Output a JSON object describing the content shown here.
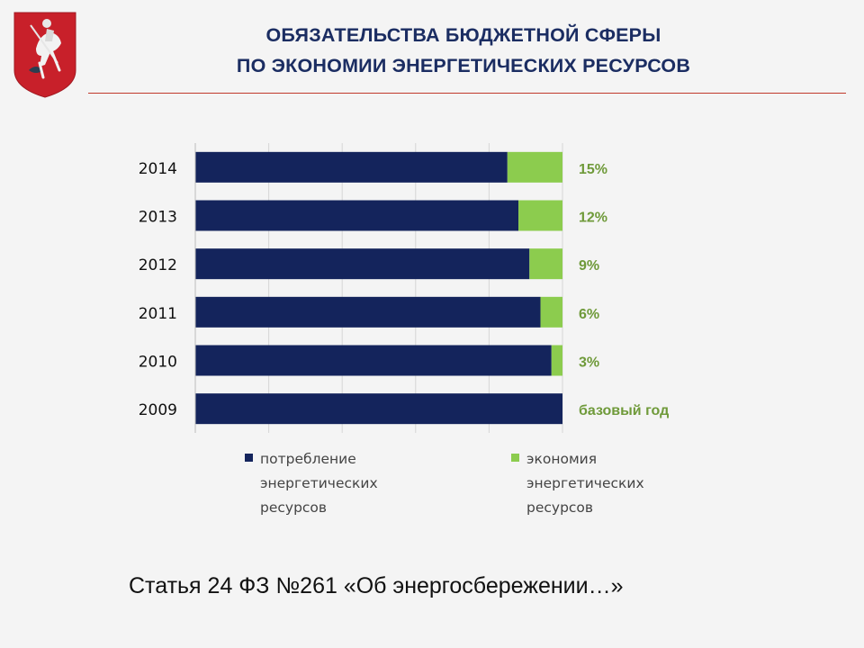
{
  "header": {
    "title_line1": "ОБЯЗАТЕЛЬСТВА БЮДЖЕТНОЙ СФЕРЫ",
    "title_line2": "ПО ЭКОНОМИИ ЭНЕРГЕТИЧЕСКИХ РЕСУРСОВ",
    "emblem": "moscow-coat-of-arms"
  },
  "footer": {
    "text": "Статья 24 ФЗ №261 «Об энергосбережении…»"
  },
  "chart_data": {
    "type": "bar",
    "orientation": "horizontal",
    "stacked": true,
    "categories": [
      "2014",
      "2013",
      "2012",
      "2011",
      "2010",
      "2009"
    ],
    "series": [
      {
        "name": "потребление энергетических ресурсов",
        "values": [
          85,
          88,
          91,
          94,
          97,
          100
        ],
        "color": "#14245c",
        "legend_lines": [
          "потребление",
          "энергетических",
          "ресурсов"
        ]
      },
      {
        "name": "экономия энергетических ресурсов",
        "values": [
          15,
          12,
          9,
          6,
          3,
          0
        ],
        "color": "#8ccc4e",
        "legend_lines": [
          "экономия",
          "энергетических",
          "ресурсов"
        ]
      }
    ],
    "data_labels": [
      "15%",
      "12%",
      "9%",
      "6%",
      "3%",
      "базовый год"
    ],
    "xlim": [
      0,
      100
    ],
    "grid": "vertical",
    "legend": "bottom",
    "label_color": "#6f9a3a"
  }
}
